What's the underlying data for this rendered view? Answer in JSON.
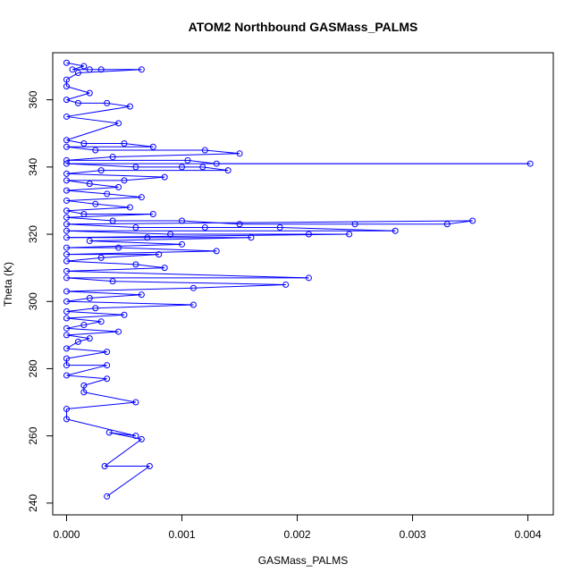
{
  "chart_data": {
    "type": "scatter",
    "title": "ATOM2 Northbound GASMass_PALMS",
    "xlabel": "GASMass_PALMS",
    "ylabel": "Theta (K)",
    "xlim": [
      -0.00012,
      0.00422
    ],
    "ylim": [
      236.5,
      374
    ],
    "x_ticks": [
      0.0,
      0.001,
      0.002,
      0.003,
      0.004
    ],
    "x_tick_labels": [
      "0.000",
      "0.001",
      "0.002",
      "0.003",
      "0.004"
    ],
    "y_ticks": [
      240,
      260,
      280,
      300,
      320,
      340,
      360
    ],
    "y_tick_labels": [
      "240",
      "260",
      "280",
      "300",
      "320",
      "340",
      "360"
    ],
    "grid": false,
    "marker": "open-circle",
    "line": true,
    "color": "#0000ff",
    "series": [
      {
        "points": [
          [
            0.0,
            371
          ],
          [
            0.00015,
            370
          ],
          [
            5e-05,
            369
          ],
          [
            0.0002,
            369
          ],
          [
            0.0003,
            369
          ],
          [
            0.00065,
            369
          ],
          [
            0.0001,
            368
          ],
          [
            0.0,
            366
          ],
          [
            0.0,
            364
          ],
          [
            0.0002,
            362
          ],
          [
            0.0,
            360
          ],
          [
            0.0001,
            359
          ],
          [
            0.00035,
            359
          ],
          [
            0.00055,
            358
          ],
          [
            0.0,
            355
          ],
          [
            0.00045,
            353
          ],
          [
            0.0,
            348
          ],
          [
            0.00015,
            347
          ],
          [
            0.0005,
            347
          ],
          [
            0.00075,
            346
          ],
          [
            0.0,
            346
          ],
          [
            0.00025,
            345
          ],
          [
            0.0012,
            345
          ],
          [
            0.0015,
            344
          ],
          [
            0.0004,
            343
          ],
          [
            0.0,
            342
          ],
          [
            0.00105,
            342
          ],
          [
            0.0013,
            341
          ],
          [
            0.00402,
            341
          ],
          [
            0.0,
            341
          ],
          [
            0.0006,
            340
          ],
          [
            0.001,
            340
          ],
          [
            0.00118,
            340
          ],
          [
            0.0014,
            339
          ],
          [
            0.0003,
            339
          ],
          [
            0.0,
            338
          ],
          [
            0.00085,
            337
          ],
          [
            0.0005,
            336
          ],
          [
            0.0,
            336
          ],
          [
            0.0002,
            335
          ],
          [
            0.00045,
            334
          ],
          [
            0.0,
            333
          ],
          [
            0.00035,
            332
          ],
          [
            0.00065,
            331
          ],
          [
            0.0,
            330
          ],
          [
            0.00025,
            329
          ],
          [
            0.00055,
            328
          ],
          [
            0.0,
            327
          ],
          [
            0.00015,
            326
          ],
          [
            0.00075,
            326
          ],
          [
            0.0,
            325
          ],
          [
            0.0004,
            324
          ],
          [
            0.001,
            324
          ],
          [
            0.0015,
            323
          ],
          [
            0.0025,
            323
          ],
          [
            0.0033,
            323
          ],
          [
            0.00352,
            324
          ],
          [
            0.0,
            323
          ],
          [
            0.0006,
            322
          ],
          [
            0.0012,
            322
          ],
          [
            0.00185,
            322
          ],
          [
            0.00285,
            321
          ],
          [
            0.0,
            321
          ],
          [
            0.0009,
            320
          ],
          [
            0.0021,
            320
          ],
          [
            0.00245,
            320
          ],
          [
            0.0,
            319
          ],
          [
            0.0007,
            319
          ],
          [
            0.0016,
            319
          ],
          [
            0.0002,
            318
          ],
          [
            0.001,
            317
          ],
          [
            0.0,
            316
          ],
          [
            0.00045,
            316
          ],
          [
            0.0013,
            315
          ],
          [
            0.0,
            314
          ],
          [
            0.0008,
            314
          ],
          [
            0.0003,
            313
          ],
          [
            0.0,
            312
          ],
          [
            0.0006,
            311
          ],
          [
            0.00085,
            310
          ],
          [
            0.0,
            309
          ],
          [
            0.0021,
            307
          ],
          [
            0.0,
            307
          ],
          [
            0.0004,
            306
          ],
          [
            0.0019,
            305
          ],
          [
            0.0011,
            304
          ],
          [
            0.0,
            303
          ],
          [
            0.00065,
            302
          ],
          [
            0.0002,
            301
          ],
          [
            0.0,
            300
          ],
          [
            0.0011,
            299
          ],
          [
            0.00025,
            298
          ],
          [
            0.0,
            297
          ],
          [
            0.0005,
            296
          ],
          [
            0.0,
            295
          ],
          [
            0.0003,
            294
          ],
          [
            0.00015,
            293
          ],
          [
            0.0,
            292
          ],
          [
            0.00045,
            291
          ],
          [
            0.0,
            290
          ],
          [
            0.0002,
            289
          ],
          [
            0.0001,
            288
          ],
          [
            0.0,
            286
          ],
          [
            0.00035,
            285
          ],
          [
            0.0,
            283
          ],
          [
            0.0,
            281
          ],
          [
            0.00035,
            281
          ],
          [
            0.0,
            278
          ],
          [
            0.00035,
            277
          ],
          [
            0.00015,
            275
          ],
          [
            0.00015,
            273
          ],
          [
            0.0006,
            270
          ],
          [
            0.0,
            268
          ],
          [
            0.0,
            265
          ],
          [
            0.0006,
            260
          ],
          [
            0.00037,
            261
          ],
          [
            0.00065,
            259
          ],
          [
            0.00033,
            251
          ],
          [
            0.00072,
            251
          ],
          [
            0.00035,
            242
          ]
        ]
      }
    ]
  }
}
